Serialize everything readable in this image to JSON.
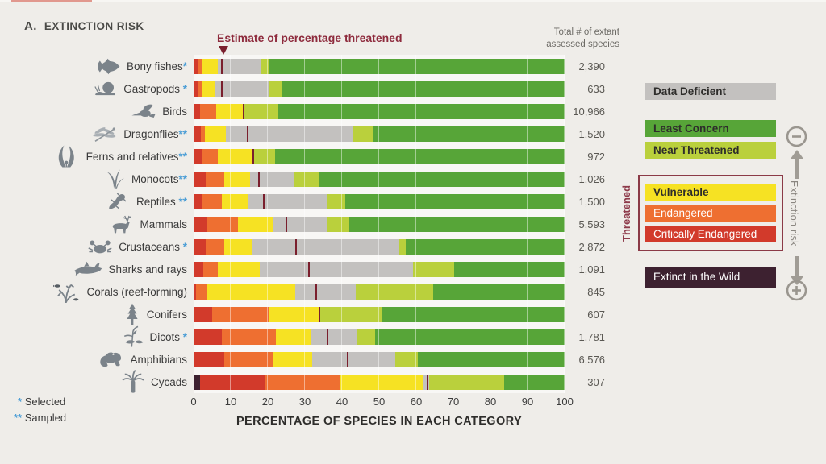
{
  "page": {
    "title_prefix": "A.",
    "title": "EXTINCTION RISK"
  },
  "annotation": {
    "label": "Estimate of percentage threatened"
  },
  "totals_header": {
    "line1": "Total # of extant",
    "line2": "assessed species"
  },
  "axis": {
    "ticks": [
      0,
      10,
      20,
      30,
      40,
      50,
      60,
      70,
      80,
      90,
      100
    ],
    "label": "PERCENTAGE OF SPECIES IN EACH CATEGORY",
    "max": 100
  },
  "footnotes": [
    {
      "marker": "*",
      "label": "Selected"
    },
    {
      "marker": "**",
      "label": "Sampled"
    }
  ],
  "legend": {
    "data_deficient": "Data Deficient",
    "least_concern": "Least Concern",
    "near_threatened": "Near Threatened",
    "vulnerable": "Vulnerable",
    "endangered": "Endangered",
    "critically_endangered": "Critically Endangered",
    "extinct_wild": "Extinct in the Wild",
    "threatened_label": "Threatened",
    "risk_axis_label": "Extinction risk"
  },
  "colors": {
    "EW": "#3d2130",
    "CR": "#d23a2b",
    "EN": "#ee6f31",
    "VU": "#f6e223",
    "DD": "#c3c1bf",
    "NT": "#bad03c",
    "LC": "#57a538",
    "marker": "#7a1f2d",
    "accent_maroon": "#8e2b3d",
    "asterisk_blue": "#4e9fd6",
    "icon_gray": "#7b838a"
  },
  "chart_data": {
    "type": "bar",
    "orientation": "horizontal-stacked",
    "title": "A. EXTINCTION RISK",
    "xlabel": "PERCENTAGE OF SPECIES IN EACH CATEGORY",
    "xlim": [
      0,
      100
    ],
    "grid": true,
    "legend_position": "right",
    "segment_order": [
      "EW",
      "CR",
      "EN",
      "VU",
      "DD",
      "NT",
      "LC"
    ],
    "segment_names": {
      "EW": "Extinct in the Wild",
      "CR": "Critically Endangered",
      "EN": "Endangered",
      "VU": "Vulnerable",
      "DD": "Data Deficient",
      "NT": "Near Threatened",
      "LC": "Least Concern"
    },
    "marker_meaning": "Estimate of percentage threatened",
    "rows": [
      {
        "label": "Bony fishes",
        "asterisk": "*",
        "icon": "fish-icon",
        "total": "2,390",
        "marker": 7.5,
        "segments": {
          "EW": 0,
          "CR": 1.2,
          "EN": 1.0,
          "VU": 4.3,
          "DD": 11.6,
          "NT": 2.2,
          "LC": 79.7
        }
      },
      {
        "label": "Gastropods",
        "asterisk": " *",
        "icon": "snail-icon",
        "total": "633",
        "marker": 7.5,
        "segments": {
          "EW": 0,
          "CR": 1.0,
          "EN": 1.2,
          "VU": 3.7,
          "DD": 14.3,
          "NT": 3.5,
          "LC": 76.3
        }
      },
      {
        "label": "Birds",
        "asterisk": "",
        "icon": "bird-icon",
        "total": "10,966",
        "marker": 13.5,
        "segments": {
          "EW": 0,
          "CR": 1.7,
          "EN": 4.3,
          "VU": 7.4,
          "DD": 0,
          "NT": 9.5,
          "LC": 77.1
        }
      },
      {
        "label": "Dragonflies",
        "asterisk": "**",
        "icon": "dragonfly-icon",
        "total": "1,520",
        "marker": 14.5,
        "segments": {
          "EW": 0,
          "CR": 2.0,
          "EN": 1.0,
          "VU": 5.8,
          "DD": 34.2,
          "NT": 5.2,
          "LC": 51.8
        }
      },
      {
        "label": "Ferns and relatives",
        "asterisk": "**",
        "icon": "fern-icon",
        "total": "972",
        "marker": 16.0,
        "segments": {
          "EW": 0,
          "CR": 2.2,
          "EN": 4.3,
          "VU": 9.1,
          "DD": 0,
          "NT": 6.3,
          "LC": 78.1
        }
      },
      {
        "label": "Monocots",
        "asterisk": "**",
        "icon": "grass-icon",
        "total": "1,026",
        "marker": 17.5,
        "segments": {
          "EW": 0,
          "CR": 3.3,
          "EN": 5.0,
          "VU": 6.9,
          "DD": 12.0,
          "NT": 6.5,
          "LC": 66.3
        }
      },
      {
        "label": "Reptiles",
        "asterisk": " **",
        "icon": "gecko-icon",
        "total": "1,500",
        "marker": 19.0,
        "segments": {
          "EW": 0,
          "CR": 2.2,
          "EN": 5.4,
          "VU": 6.9,
          "DD": 21.4,
          "NT": 5.0,
          "LC": 59.1
        }
      },
      {
        "label": "Mammals",
        "asterisk": "",
        "icon": "deer-icon",
        "total": "5,593",
        "marker": 25.0,
        "segments": {
          "EW": 0,
          "CR": 3.6,
          "EN": 8.4,
          "VU": 9.4,
          "DD": 14.5,
          "NT": 6.1,
          "LC": 58.0
        }
      },
      {
        "label": "Crustaceans",
        "asterisk": " *",
        "icon": "crab-icon",
        "total": "2,872",
        "marker": 27.5,
        "segments": {
          "EW": 0,
          "CR": 3.3,
          "EN": 5.0,
          "VU": 7.6,
          "DD": 39.5,
          "NT": 1.8,
          "LC": 42.8
        }
      },
      {
        "label": "Sharks and rays",
        "asterisk": "",
        "icon": "shark-icon",
        "total": "1,091",
        "marker": 31.0,
        "segments": {
          "EW": 0,
          "CR": 2.5,
          "EN": 4.0,
          "VU": 11.3,
          "DD": 41.3,
          "NT": 11.2,
          "LC": 29.7
        }
      },
      {
        "label": "Corals (reef-forming)",
        "asterisk": "",
        "icon": "coral-icon",
        "total": "845",
        "marker": 33.0,
        "segments": {
          "EW": 0,
          "CR": 0.6,
          "EN": 3.0,
          "VU": 23.9,
          "DD": 16.3,
          "NT": 20.7,
          "LC": 35.5
        }
      },
      {
        "label": "Conifers",
        "asterisk": "",
        "icon": "conifer-icon",
        "total": "607",
        "marker": 34.0,
        "segments": {
          "EW": 0,
          "CR": 5.1,
          "EN": 15.2,
          "VU": 13.4,
          "DD": 0,
          "NT": 16.9,
          "LC": 49.4
        }
      },
      {
        "label": "Dicots",
        "asterisk": " *",
        "icon": "dicot-icon",
        "total": "1,781",
        "marker": 36.0,
        "segments": {
          "EW": 0,
          "CR": 7.6,
          "EN": 14.5,
          "VU": 9.4,
          "DD": 12.7,
          "NT": 4.7,
          "LC": 51.1
        }
      },
      {
        "label": "Amphibians",
        "asterisk": "",
        "icon": "frog-icon",
        "total": "6,576",
        "marker": 41.5,
        "segments": {
          "EW": 0,
          "CR": 8.3,
          "EN": 13.1,
          "VU": 10.5,
          "DD": 22.4,
          "NT": 6.2,
          "LC": 39.5
        }
      },
      {
        "label": "Cycads",
        "asterisk": "",
        "icon": "cycad-icon",
        "total": "307",
        "marker": 63.0,
        "segments": {
          "EW": 1.7,
          "CR": 17.4,
          "EN": 20.4,
          "VU": 22.5,
          "DD": 1.5,
          "NT": 20.3,
          "LC": 16.2
        }
      }
    ]
  }
}
